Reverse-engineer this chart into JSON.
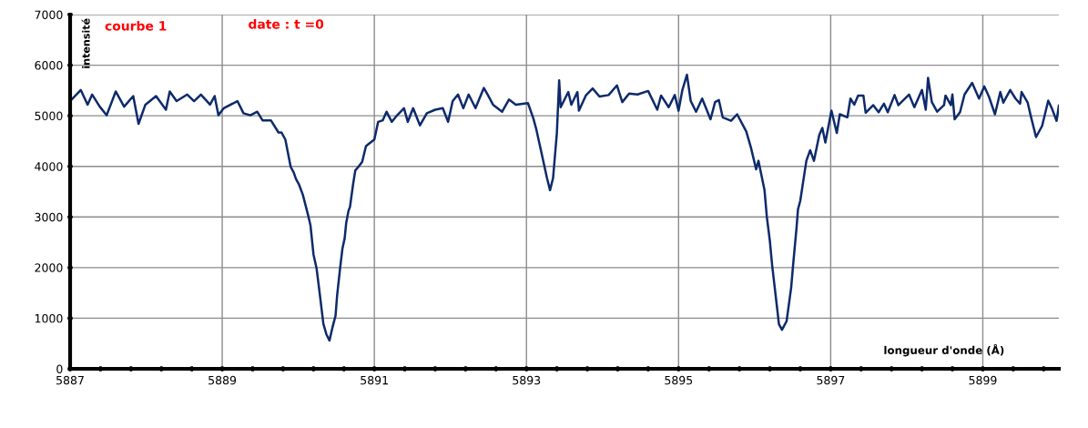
{
  "chart_data": {
    "type": "line",
    "xlabel": "longueur d'onde (Å)",
    "ylabel": "intensité",
    "annotations": [
      "courbe 1",
      "date : t =0"
    ],
    "xlim": [
      5887,
      5900
    ],
    "ylim": [
      0,
      7000
    ],
    "xticks": [
      5887,
      {
        "value": 5887.4,
        "label": null
      },
      {
        "value": 5887.8,
        "label": null
      },
      {
        "value": 5888.2,
        "label": null
      },
      {
        "value": 5888.6,
        "label": null
      },
      5889,
      {
        "value": 5889.4,
        "label": null
      },
      {
        "value": 5889.8,
        "label": null
      },
      {
        "value": 5890.2,
        "label": null
      },
      {
        "value": 5890.6,
        "label": null
      },
      5891,
      {
        "value": 5891.4,
        "label": null
      },
      {
        "value": 5891.8,
        "label": null
      },
      {
        "value": 5892.2,
        "label": null
      },
      {
        "value": 5892.6,
        "label": null
      },
      5893,
      {
        "value": 5893.4,
        "label": null
      },
      {
        "value": 5893.8,
        "label": null
      },
      {
        "value": 5894.2,
        "label": null
      },
      {
        "value": 5894.6,
        "label": null
      },
      5895,
      {
        "value": 5895.4,
        "label": null
      },
      {
        "value": 5895.8,
        "label": null
      },
      {
        "value": 5896.2,
        "label": null
      },
      {
        "value": 5896.6,
        "label": null
      },
      5897,
      {
        "value": 5897.4,
        "label": null
      },
      {
        "value": 5897.8,
        "label": null
      },
      {
        "value": 5898.2,
        "label": null
      },
      {
        "value": 5898.6,
        "label": null
      },
      5899,
      {
        "value": 5899.4,
        "label": null
      },
      {
        "value": 5899.8,
        "label": null
      }
    ],
    "yticks": [
      0,
      1000,
      2000,
      3000,
      4000,
      5000,
      6000,
      7000
    ],
    "grid": true,
    "legend": false,
    "marker": "none",
    "line_style": "solid",
    "series": [
      {
        "color": "#0d2a6b",
        "x": [
          5887.0,
          5887.14,
          5887.23,
          5887.29,
          5887.39,
          5887.48,
          5887.6,
          5887.71,
          5887.83,
          5887.9,
          5887.99,
          5888.13,
          5888.26,
          5888.31,
          5888.4,
          5888.54,
          5888.63,
          5888.72,
          5888.84,
          5888.9,
          5888.95,
          5889.02,
          5889.2,
          5889.28,
          5889.37,
          5889.46,
          5889.53,
          5889.64,
          5889.74,
          5889.78,
          5889.83,
          5889.9,
          5889.94,
          5889.97,
          5890.01,
          5890.06,
          5890.13,
          5890.16,
          5890.2,
          5890.24,
          5890.28,
          5890.33,
          5890.37,
          5890.41,
          5890.45,
          5890.49,
          5890.51,
          5890.55,
          5890.58,
          5890.61,
          5890.63,
          5890.66,
          5890.68,
          5890.72,
          5890.75,
          5890.79,
          5890.84,
          5890.89,
          5890.93,
          5891.0,
          5891.05,
          5891.11,
          5891.16,
          5891.23,
          5891.3,
          5891.39,
          5891.44,
          5891.51,
          5891.6,
          5891.69,
          5891.8,
          5891.9,
          5891.97,
          5892.03,
          5892.1,
          5892.17,
          5892.24,
          5892.33,
          5892.44,
          5892.49,
          5892.56,
          5892.68,
          5892.77,
          5892.86,
          5893.02,
          5893.09,
          5893.13,
          5893.2,
          5893.27,
          5893.31,
          5893.35,
          5893.4,
          5893.43,
          5893.45,
          5893.55,
          5893.59,
          5893.67,
          5893.69,
          5893.78,
          5893.87,
          5893.96,
          5894.08,
          5894.19,
          5894.26,
          5894.35,
          5894.46,
          5894.6,
          5894.72,
          5894.77,
          5894.87,
          5894.95,
          5895.0,
          5895.05,
          5895.11,
          5895.16,
          5895.23,
          5895.31,
          5895.42,
          5895.48,
          5895.53,
          5895.58,
          5895.69,
          5895.77,
          5895.89,
          5895.95,
          5896.02,
          5896.05,
          5896.13,
          5896.16,
          5896.2,
          5896.23,
          5896.27,
          5896.32,
          5896.36,
          5896.42,
          5896.48,
          5896.51,
          5896.55,
          5896.57,
          5896.6,
          5896.68,
          5896.73,
          5896.78,
          5896.85,
          5896.89,
          5896.93,
          5897.01,
          5897.08,
          5897.12,
          5897.22,
          5897.26,
          5897.31,
          5897.36,
          5897.43,
          5897.46,
          5897.56,
          5897.63,
          5897.7,
          5897.75,
          5897.84,
          5897.89,
          5898.03,
          5898.1,
          5898.2,
          5898.25,
          5898.28,
          5898.33,
          5898.4,
          5898.49,
          5898.51,
          5898.58,
          5898.6,
          5898.63,
          5898.7,
          5898.76,
          5898.86,
          5898.95,
          5899.02,
          5899.08,
          5899.16,
          5899.23,
          5899.27,
          5899.36,
          5899.43,
          5899.49,
          5899.51,
          5899.59,
          5899.63,
          5899.7,
          5899.78,
          5899.86,
          5899.91,
          5899.97,
          5900.0
        ],
        "values": [
          5290,
          5510,
          5220,
          5420,
          5180,
          5010,
          5480,
          5180,
          5390,
          4840,
          5220,
          5390,
          5120,
          5480,
          5290,
          5420,
          5290,
          5420,
          5220,
          5390,
          5010,
          5150,
          5290,
          5050,
          5010,
          5080,
          4910,
          4910,
          4670,
          4670,
          4530,
          3990,
          3880,
          3750,
          3640,
          3440,
          3030,
          2840,
          2260,
          1990,
          1510,
          890,
          680,
          560,
          820,
          1050,
          1440,
          1990,
          2370,
          2580,
          2880,
          3120,
          3200,
          3640,
          3920,
          3990,
          4090,
          4400,
          4450,
          4530,
          4880,
          4910,
          5080,
          4880,
          5010,
          5150,
          4880,
          5150,
          4810,
          5050,
          5120,
          5150,
          4880,
          5290,
          5420,
          5150,
          5420,
          5150,
          5550,
          5420,
          5220,
          5080,
          5320,
          5220,
          5250,
          4950,
          4730,
          4250,
          3770,
          3530,
          3770,
          4660,
          5700,
          5170,
          5470,
          5220,
          5470,
          5100,
          5400,
          5540,
          5380,
          5410,
          5600,
          5270,
          5440,
          5420,
          5490,
          5120,
          5400,
          5170,
          5410,
          5100,
          5510,
          5810,
          5290,
          5080,
          5340,
          4930,
          5270,
          5310,
          4970,
          4900,
          5030,
          4690,
          4380,
          3940,
          4110,
          3530,
          3010,
          2530,
          2050,
          1530,
          880,
          770,
          940,
          1600,
          2120,
          2770,
          3150,
          3320,
          4110,
          4320,
          4110,
          4620,
          4760,
          4470,
          5100,
          4660,
          5030,
          4970,
          5340,
          5220,
          5400,
          5400,
          5060,
          5210,
          5070,
          5240,
          5070,
          5410,
          5210,
          5420,
          5170,
          5510,
          5120,
          5750,
          5270,
          5080,
          5210,
          5400,
          5210,
          5420,
          4930,
          5070,
          5420,
          5650,
          5340,
          5580,
          5380,
          5030,
          5470,
          5260,
          5510,
          5340,
          5240,
          5470,
          5260,
          5000,
          4580,
          4800,
          5300,
          5140,
          4900,
          5200
        ]
      }
    ]
  }
}
